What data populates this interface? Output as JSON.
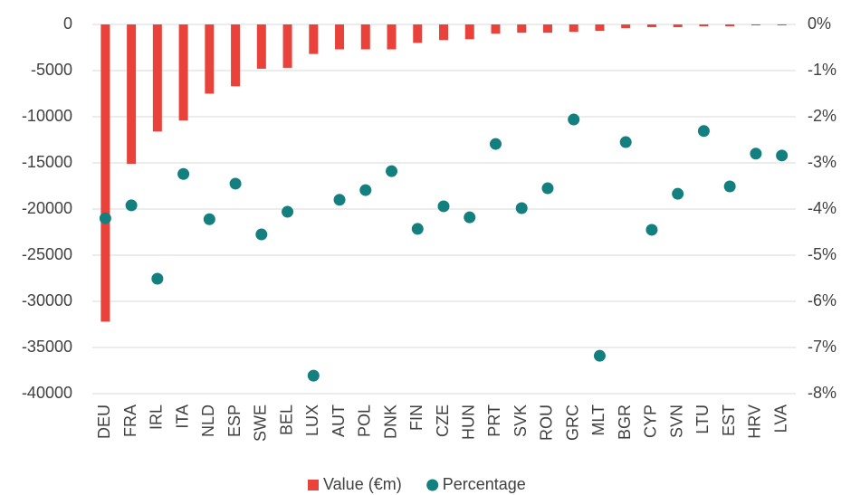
{
  "chart_data": {
    "type": "bar-scatter",
    "categories": [
      "DEU",
      "FRA",
      "IRL",
      "ITA",
      "NLD",
      "ESP",
      "SWE",
      "BEL",
      "LUX",
      "AUT",
      "POL",
      "DNK",
      "FIN",
      "CZE",
      "HUN",
      "PRT",
      "SVK",
      "ROU",
      "GRC",
      "MLT",
      "BGR",
      "CYP",
      "SVN",
      "LTU",
      "EST",
      "HRV",
      "LVA"
    ],
    "series": [
      {
        "name": "Value (€m)",
        "color": "#e8423a",
        "type": "bar",
        "values": [
          -32200,
          -15100,
          -11600,
          -10400,
          -7500,
          -6700,
          -4800,
          -4700,
          -3200,
          -2700,
          -2700,
          -2700,
          -2000,
          -1700,
          -1600,
          -1000,
          -900,
          -900,
          -800,
          -700,
          -400,
          -300,
          -300,
          -200,
          -200,
          -100,
          -100
        ]
      },
      {
        "name": "Percentage",
        "color": "#13807f",
        "type": "scatter",
        "axis": "y2",
        "values": [
          -4.2,
          -3.92,
          -5.51,
          -3.24,
          -4.22,
          -3.45,
          -4.55,
          -4.06,
          -7.61,
          -3.8,
          -3.59,
          -3.18,
          -4.43,
          -3.94,
          -4.18,
          -2.59,
          -3.98,
          -3.55,
          -2.06,
          -7.18,
          -2.55,
          -4.45,
          -3.67,
          -2.31,
          -3.51,
          -2.8,
          -2.84
        ]
      }
    ],
    "ylim": [
      -40000,
      0
    ],
    "yticks": [
      0,
      -5000,
      -10000,
      -15000,
      -20000,
      -25000,
      -30000,
      -35000,
      -40000
    ],
    "y2lim": [
      -8,
      0
    ],
    "y2ticks": [
      {
        "value": 0,
        "label": "0%"
      },
      {
        "value": -1,
        "label": "-1%"
      },
      {
        "value": -2,
        "label": "-2%"
      },
      {
        "value": -3,
        "label": "-3%"
      },
      {
        "value": -4,
        "label": "-4%"
      },
      {
        "value": -5,
        "label": "-5%"
      },
      {
        "value": -6,
        "label": "-6%"
      },
      {
        "value": -7,
        "label": "-7%"
      },
      {
        "value": -8,
        "label": "-8%"
      }
    ],
    "grid": true,
    "legend": "bottom"
  }
}
